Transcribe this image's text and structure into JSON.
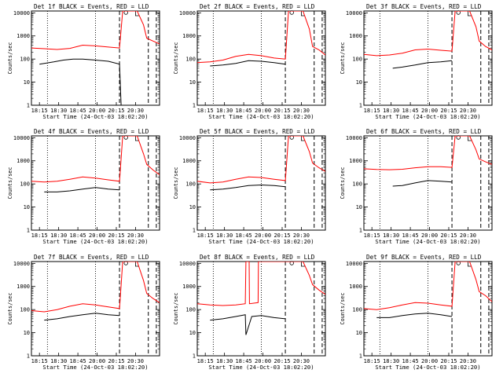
{
  "figure": {
    "title_template": "Det {n}f BLACK = Events, RED = LLD",
    "ylabel": "Counts/sec",
    "xlabel": "Start Time (24-Oct-03 18:02:20)"
  },
  "colors": {
    "events": "#000000",
    "lld": "#ff0000",
    "axes": "#000000"
  },
  "chart_data": [
    {
      "type": "line",
      "detector": "1f",
      "title": "Det 1f BLACK = Events, RED = LLD",
      "xlabel": "Start Time (24-Oct-03 18:02:20)",
      "ylabel": "Counts/sec",
      "x_tick_labels": [
        "18:15",
        "18:30",
        "18:45",
        "20:00",
        "20:15",
        "20:30"
      ],
      "y_scale": "log",
      "ylim": [
        1,
        12000
      ],
      "y_tick_labels": [
        "1",
        "10",
        "100",
        "1000",
        "10000"
      ],
      "series": [
        {
          "name": "Events",
          "x": [
            0,
            2,
            2.5,
            4,
            7,
            10,
            13,
            16,
            20,
            24,
            27.5,
            28
          ],
          "y": [
            null,
            null,
            60,
            65,
            75,
            90,
            100,
            100,
            90,
            80,
            60,
            1
          ]
        },
        {
          "name": "LLD",
          "x": [
            0,
            4,
            8,
            12,
            16,
            20,
            24,
            27.5,
            28.5,
            29,
            31,
            33,
            35,
            36,
            38,
            40
          ],
          "y": [
            300,
            280,
            260,
            290,
            400,
            370,
            330,
            300,
            12000,
            12000,
            12000,
            12000,
            3000,
            800,
            600,
            450
          ]
        }
      ]
    },
    {
      "type": "line",
      "detector": "2f",
      "title": "Det 2f BLACK = Events, RED = LLD",
      "xlabel": "Start Time (24-Oct-03 18:02:20)",
      "ylabel": "Counts/sec",
      "x_tick_labels": [
        "18:15",
        "18:30",
        "18:45",
        "20:00",
        "20:15",
        "20:30"
      ],
      "y_scale": "log",
      "ylim": [
        1,
        12000
      ],
      "y_tick_labels": [
        "1",
        "10",
        "100",
        "1000",
        "10000"
      ],
      "series": [
        {
          "name": "Events",
          "x": [
            4,
            8,
            12,
            16,
            20,
            24,
            27.5
          ],
          "y": [
            50,
            55,
            65,
            85,
            80,
            70,
            60
          ]
        },
        {
          "name": "LLD",
          "x": [
            0,
            4,
            8,
            12,
            16,
            20,
            24,
            27.5,
            28.5,
            29,
            31,
            33,
            35,
            36,
            38,
            40
          ],
          "y": [
            70,
            75,
            90,
            130,
            160,
            140,
            110,
            100,
            12000,
            12000,
            12000,
            12000,
            2000,
            350,
            250,
            150
          ]
        }
      ]
    },
    {
      "type": "line",
      "detector": "3f",
      "title": "Det 3f BLACK = Events, RED = LLD",
      "xlabel": "Start Time (24-Oct-03 18:02:20)",
      "ylabel": "Counts/sec",
      "x_tick_labels": [
        "18:15",
        "18:30",
        "18:45",
        "20:00",
        "20:15",
        "20:30"
      ],
      "y_scale": "log",
      "ylim": [
        1,
        12000
      ],
      "y_tick_labels": [
        "1",
        "10",
        "100",
        "1000",
        "10000"
      ],
      "series": [
        {
          "name": "Events",
          "x": [
            9,
            12,
            16,
            20,
            24,
            27.5
          ],
          "y": [
            40,
            45,
            55,
            70,
            75,
            85
          ]
        },
        {
          "name": "LLD",
          "x": [
            0,
            4,
            8,
            12,
            16,
            20,
            24,
            27.5,
            28.5,
            29,
            31,
            33,
            35,
            36,
            38,
            40
          ],
          "y": [
            160,
            140,
            150,
            180,
            250,
            270,
            240,
            220,
            12000,
            12000,
            12000,
            12000,
            2500,
            600,
            350,
            250
          ]
        }
      ]
    },
    {
      "type": "line",
      "detector": "4f",
      "title": "Det 4f BLACK = Events, RED = LLD",
      "xlabel": "Start Time (24-Oct-03 18:02:20)",
      "ylabel": "Counts/sec",
      "x_tick_labels": [
        "18:15",
        "18:30",
        "18:45",
        "20:00",
        "20:15",
        "20:30"
      ],
      "y_scale": "log",
      "ylim": [
        1,
        12000
      ],
      "y_tick_labels": [
        "1",
        "10",
        "100",
        "1000",
        "10000"
      ],
      "series": [
        {
          "name": "Events",
          "x": [
            4,
            8,
            12,
            16,
            20,
            24,
            27.5
          ],
          "y": [
            45,
            45,
            50,
            60,
            70,
            60,
            55
          ]
        },
        {
          "name": "LLD",
          "x": [
            0,
            4,
            8,
            12,
            16,
            20,
            24,
            27.5,
            28.5,
            29,
            31,
            33,
            35,
            36,
            38,
            40
          ],
          "y": [
            130,
            120,
            130,
            160,
            200,
            180,
            150,
            130,
            12000,
            12000,
            12000,
            12000,
            2000,
            700,
            400,
            250
          ]
        }
      ]
    },
    {
      "type": "line",
      "detector": "5f",
      "title": "Det 5f BLACK = Events, RED = LLD",
      "xlabel": "Start Time (24-Oct-03 18:02:20)",
      "ylabel": "Counts/sec",
      "x_tick_labels": [
        "18:15",
        "18:30",
        "18:45",
        "20:00",
        "20:15",
        "20:30"
      ],
      "y_scale": "log",
      "ylim": [
        1,
        12000
      ],
      "y_tick_labels": [
        "1",
        "10",
        "100",
        "1000",
        "10000"
      ],
      "series": [
        {
          "name": "Events",
          "x": [
            4,
            8,
            12,
            16,
            20,
            24,
            27.5
          ],
          "y": [
            55,
            60,
            70,
            85,
            90,
            85,
            75
          ]
        },
        {
          "name": "LLD",
          "x": [
            0,
            4,
            8,
            12,
            16,
            20,
            24,
            27.5,
            28.5,
            29,
            31,
            33,
            35,
            36,
            38,
            40
          ],
          "y": [
            130,
            110,
            120,
            160,
            200,
            190,
            160,
            140,
            12000,
            12000,
            12000,
            12000,
            2500,
            800,
            500,
            350
          ]
        }
      ]
    },
    {
      "type": "line",
      "detector": "6f",
      "title": "Det 6f BLACK = Events, RED = LLD",
      "xlabel": "Start Time (24-Oct-03 18:02:20)",
      "ylabel": "Counts/sec",
      "x_tick_labels": [
        "18:15",
        "18:30",
        "18:45",
        "20:00",
        "20:15",
        "20:30"
      ],
      "y_scale": "log",
      "ylim": [
        1,
        12000
      ],
      "y_tick_labels": [
        "1",
        "10",
        "100",
        "1000",
        "10000"
      ],
      "series": [
        {
          "name": "Events",
          "x": [
            9,
            12,
            16,
            20,
            24,
            27.5
          ],
          "y": [
            80,
            85,
            110,
            140,
            130,
            120
          ]
        },
        {
          "name": "LLD",
          "x": [
            0,
            4,
            8,
            12,
            16,
            20,
            24,
            27.5,
            28.5,
            29,
            31,
            33,
            35,
            36,
            38,
            40
          ],
          "y": [
            450,
            420,
            410,
            430,
            500,
            560,
            560,
            520,
            12000,
            12000,
            12000,
            12000,
            3000,
            1200,
            900,
            700
          ]
        }
      ]
    },
    {
      "type": "line",
      "detector": "7f",
      "title": "Det 7f BLACK = Events, RED = LLD",
      "xlabel": "Start Time (24-Oct-03 18:02:20)",
      "ylabel": "Counts/sec",
      "x_tick_labels": [
        "18:15",
        "18:30",
        "18:45",
        "20:00",
        "20:15",
        "20:30"
      ],
      "y_scale": "log",
      "ylim": [
        1,
        12000
      ],
      "y_tick_labels": [
        "1",
        "10",
        "100",
        "1000",
        "10000"
      ],
      "series": [
        {
          "name": "Events",
          "x": [
            4,
            8,
            12,
            16,
            20,
            24,
            27.5
          ],
          "y": [
            35,
            40,
            50,
            60,
            70,
            60,
            55
          ]
        },
        {
          "name": "LLD",
          "x": [
            0,
            4,
            8,
            12,
            16,
            20,
            24,
            27.5,
            28.5,
            29,
            31,
            33,
            35,
            36,
            38,
            40
          ],
          "y": [
            90,
            80,
            100,
            140,
            180,
            160,
            130,
            110,
            12000,
            12000,
            12000,
            12000,
            1800,
            500,
            300,
            200
          ]
        }
      ]
    },
    {
      "type": "line",
      "detector": "8f",
      "title": "Det 8f BLACK = Events, RED = LLD",
      "xlabel": "Start Time (24-Oct-03 18:02:20)",
      "ylabel": "Counts/sec",
      "x_tick_labels": [
        "18:15",
        "18:30",
        "18:45",
        "20:00",
        "20:15",
        "20:30"
      ],
      "y_scale": "log",
      "ylim": [
        1,
        12000
      ],
      "y_tick_labels": [
        "1",
        "10",
        "100",
        "1000",
        "10000"
      ],
      "series": [
        {
          "name": "Events",
          "x": [
            4,
            8,
            12,
            15,
            15.2,
            17,
            20,
            24,
            27.5
          ],
          "y": [
            35,
            40,
            50,
            60,
            8,
            50,
            55,
            45,
            40
          ]
        },
        {
          "name": "LLD",
          "x": [
            0,
            4,
            8,
            12,
            15,
            15.2,
            16.2,
            16.3,
            19,
            19.1,
            21,
            24,
            27.5,
            28.5,
            29,
            31,
            33,
            35,
            36,
            38,
            40
          ],
          "y": [
            180,
            160,
            150,
            160,
            180,
            12000,
            12000,
            180,
            200,
            12000,
            12000,
            12000,
            12000,
            12000,
            12000,
            12000,
            12000,
            3000,
            1200,
            700,
            450
          ]
        }
      ]
    },
    {
      "type": "line",
      "detector": "9f",
      "title": "Det 9f BLACK = Events, RED = LLD",
      "xlabel": "Start Time (24-Oct-03 18:02:20)",
      "ylabel": "Counts/sec",
      "x_tick_labels": [
        "18:15",
        "18:30",
        "18:45",
        "20:00",
        "20:15",
        "20:30"
      ],
      "y_scale": "log",
      "ylim": [
        1,
        12000
      ],
      "y_tick_labels": [
        "1",
        "10",
        "100",
        "1000",
        "10000"
      ],
      "series": [
        {
          "name": "Events",
          "x": [
            4,
            8,
            12,
            16,
            20,
            24,
            27.5
          ],
          "y": [
            45,
            45,
            55,
            65,
            70,
            60,
            50
          ]
        },
        {
          "name": "LLD",
          "x": [
            0,
            4,
            8,
            12,
            16,
            20,
            24,
            27.5,
            28.5,
            29,
            31,
            33,
            35,
            36,
            38,
            40
          ],
          "y": [
            110,
            100,
            120,
            160,
            200,
            190,
            160,
            140,
            12000,
            12000,
            12000,
            12000,
            2000,
            600,
            400,
            220
          ]
        }
      ]
    }
  ]
}
